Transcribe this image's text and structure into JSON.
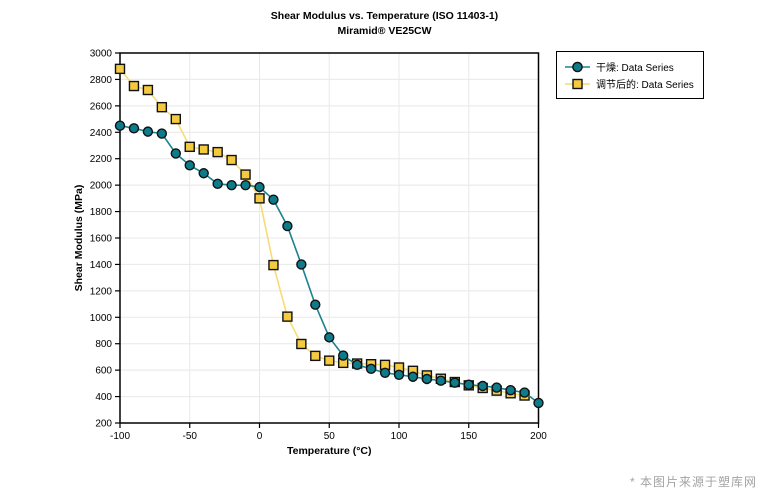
{
  "title": {
    "line1": "Shear Modulus vs. Temperature (ISO 11403-1)",
    "line2": "Miramid® VE25CW"
  },
  "watermark": "* 本图片来源于塑库网",
  "chart_data": {
    "type": "line",
    "title": "Shear Modulus vs. Temperature (ISO 11403-1)",
    "subtitle": "Miramid® VE25CW",
    "xlabel": "Temperature (°C)",
    "ylabel": "Shear Modulus (MPa)",
    "xlim": [
      -100,
      200
    ],
    "ylim": [
      200,
      3000
    ],
    "x_ticks": [
      -100,
      -50,
      0,
      50,
      100,
      150,
      200
    ],
    "y_ticks": [
      200,
      400,
      600,
      800,
      1000,
      1200,
      1400,
      1600,
      1800,
      2000,
      2200,
      2400,
      2600,
      2800,
      3000
    ],
    "grid": true,
    "grid_color": "#e8e8e8",
    "axis_color": "#000000",
    "legend_position": "top-right-outside",
    "series": [
      {
        "name": "干燥: Data Series",
        "marker": "circle",
        "marker_fill": "#0e7b8b",
        "marker_stroke": "#111111",
        "line_color": "#1b838e",
        "points": [
          [
            -100,
            2450
          ],
          [
            -90,
            2430
          ],
          [
            -80,
            2405
          ],
          [
            -70,
            2390
          ],
          [
            -60,
            2240
          ],
          [
            -50,
            2150
          ],
          [
            -40,
            2090
          ],
          [
            -30,
            2010
          ],
          [
            -20,
            2000
          ],
          [
            -10,
            2000
          ],
          [
            0,
            1985
          ],
          [
            10,
            1890
          ],
          [
            20,
            1690
          ],
          [
            30,
            1400
          ],
          [
            40,
            1095
          ],
          [
            50,
            848
          ],
          [
            60,
            710
          ],
          [
            70,
            640
          ],
          [
            80,
            610
          ],
          [
            90,
            580
          ],
          [
            100,
            565
          ],
          [
            110,
            550
          ],
          [
            120,
            533
          ],
          [
            130,
            520
          ],
          [
            140,
            505
          ],
          [
            150,
            490
          ],
          [
            160,
            480
          ],
          [
            170,
            468
          ],
          [
            180,
            448
          ],
          [
            190,
            430
          ],
          [
            200,
            352
          ]
        ]
      },
      {
        "name": "调节后的: Data Series",
        "marker": "square",
        "marker_fill": "#f3ca40",
        "marker_stroke": "#111111",
        "line_color": "#f7dc74",
        "points": [
          [
            -100,
            2880
          ],
          [
            -90,
            2750
          ],
          [
            -80,
            2720
          ],
          [
            -70,
            2590
          ],
          [
            -60,
            2500
          ],
          [
            -50,
            2290
          ],
          [
            -40,
            2270
          ],
          [
            -30,
            2250
          ],
          [
            -20,
            2190
          ],
          [
            -10,
            2080
          ],
          [
            0,
            1900
          ],
          [
            10,
            1395
          ],
          [
            20,
            1005
          ],
          [
            30,
            798
          ],
          [
            40,
            708
          ],
          [
            50,
            672
          ],
          [
            60,
            655
          ],
          [
            70,
            650
          ],
          [
            80,
            645
          ],
          [
            90,
            640
          ],
          [
            100,
            620
          ],
          [
            110,
            595
          ],
          [
            120,
            560
          ],
          [
            130,
            535
          ],
          [
            140,
            510
          ],
          [
            150,
            485
          ],
          [
            160,
            465
          ],
          [
            170,
            445
          ],
          [
            180,
            425
          ],
          [
            190,
            408
          ]
        ]
      }
    ]
  }
}
